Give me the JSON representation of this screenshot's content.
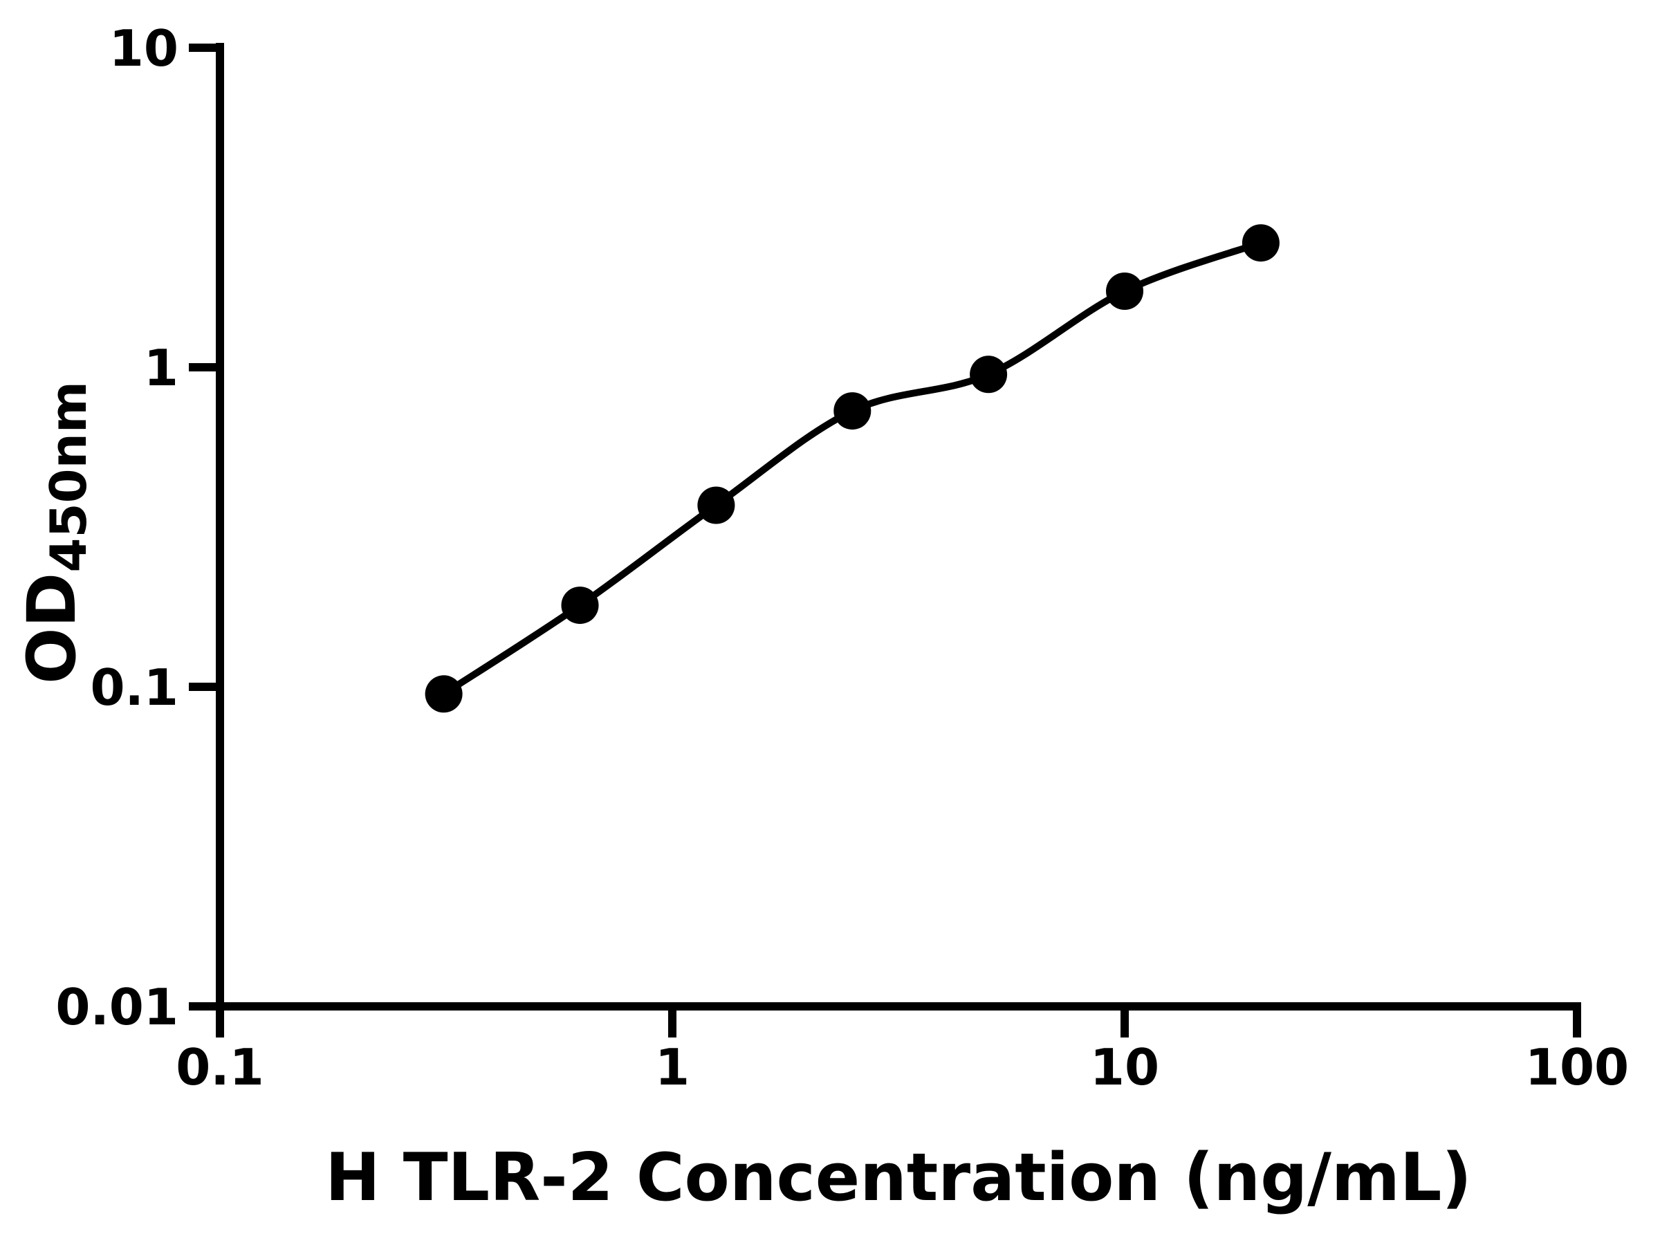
{
  "chart_data": {
    "type": "scatter",
    "title": "",
    "xlabel": "H TLR-2 Concentration (ng/mL)",
    "ylabel_main": "OD",
    "ylabel_sub": "450nm",
    "xscale": "log",
    "yscale": "log",
    "xlim": [
      0.1,
      100
    ],
    "ylim": [
      0.01,
      10
    ],
    "x": [
      0.3125,
      0.625,
      1.25,
      2.5,
      5,
      10,
      20
    ],
    "y": [
      0.095,
      0.18,
      0.37,
      0.73,
      0.95,
      1.73,
      2.45
    ],
    "x_ticks": [
      {
        "value": 0.1,
        "label": "0.1"
      },
      {
        "value": 1,
        "label": "1"
      },
      {
        "value": 10,
        "label": "10"
      },
      {
        "value": 100,
        "label": "100"
      }
    ],
    "y_ticks": [
      {
        "value": 0.01,
        "label": "0.01"
      },
      {
        "value": 0.1,
        "label": "0.1"
      },
      {
        "value": 1,
        "label": "1"
      },
      {
        "value": 10,
        "label": "10"
      }
    ],
    "series_style": {
      "marker": "circle",
      "line": "smooth-fit-curve",
      "legend": null,
      "grid": false
    },
    "colors": {
      "background": "#ffffff",
      "axis": "#000000",
      "text": "#000000",
      "marker": "#000000",
      "line": "#000000"
    }
  }
}
